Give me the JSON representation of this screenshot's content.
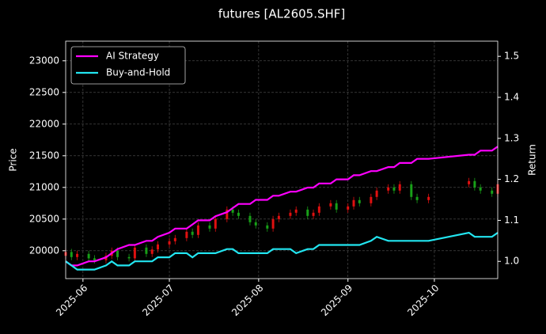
{
  "chart_data": {
    "type": "candlestick",
    "title": "futures [AL2605.SHF]",
    "ylabel": "Price",
    "y2label": "Return",
    "x": [
      "2025-05-26",
      "2025-05-28",
      "2025-05-30",
      "2025-06-03",
      "2025-06-05",
      "2025-06-09",
      "2025-06-11",
      "2025-06-13",
      "2025-06-17",
      "2025-06-19",
      "2025-06-23",
      "2025-06-25",
      "2025-06-27",
      "2025-07-01",
      "2025-07-03",
      "2025-07-07",
      "2025-07-09",
      "2025-07-11",
      "2025-07-15",
      "2025-07-17",
      "2025-07-21",
      "2025-07-23",
      "2025-07-25",
      "2025-07-29",
      "2025-07-31",
      "2025-08-04",
      "2025-08-06",
      "2025-08-08",
      "2025-08-12",
      "2025-08-14",
      "2025-08-18",
      "2025-08-20",
      "2025-08-22",
      "2025-08-26",
      "2025-08-28",
      "2025-09-01",
      "2025-09-03",
      "2025-09-05",
      "2025-09-09",
      "2025-09-11",
      "2025-09-15",
      "2025-09-17",
      "2025-09-19",
      "2025-09-23",
      "2025-09-25",
      "2025-09-29",
      "2025-10-13",
      "2025-10-15",
      "2025-10-17",
      "2025-10-21",
      "2025-10-23"
    ],
    "open": [
      19920,
      19980,
      19900,
      19950,
      19880,
      19850,
      19920,
      20000,
      19900,
      19880,
      20050,
      19950,
      20020,
      20100,
      20150,
      20200,
      20300,
      20250,
      20400,
      20350,
      20500,
      20650,
      20600,
      20550,
      20450,
      20400,
      20350,
      20500,
      20550,
      20600,
      20650,
      20550,
      20600,
      20700,
      20750,
      20650,
      20700,
      20800,
      20750,
      20850,
      20950,
      21000,
      20950,
      21050,
      20850,
      20800,
      21050,
      21100,
      21000,
      20950,
      20900
    ],
    "high": [
      20030,
      20030,
      20000,
      20000,
      19930,
      19970,
      20050,
      20050,
      19950,
      20100,
      20100,
      20070,
      20150,
      20200,
      20250,
      20350,
      20350,
      20450,
      20450,
      20550,
      20700,
      20700,
      20650,
      20600,
      20500,
      20450,
      20550,
      20600,
      20650,
      20700,
      20700,
      20650,
      20750,
      20800,
      20800,
      20750,
      20850,
      20850,
      20900,
      21000,
      21050,
      21050,
      21100,
      21100,
      20900,
      20900,
      21150,
      21150,
      21050,
      21000,
      21100
    ],
    "low": [
      19870,
      19850,
      19850,
      19830,
      19800,
      19800,
      19870,
      19850,
      19830,
      19830,
      19900,
      19900,
      19970,
      20050,
      20100,
      20150,
      20200,
      20200,
      20300,
      20300,
      20450,
      20550,
      20500,
      20400,
      20350,
      20300,
      20300,
      20450,
      20500,
      20550,
      20500,
      20500,
      20550,
      20650,
      20600,
      20600,
      20650,
      20700,
      20700,
      20800,
      20900,
      20900,
      20900,
      20800,
      20750,
      20750,
      21000,
      20950,
      20900,
      20850,
      20850
    ],
    "close": [
      19980,
      19900,
      19950,
      19880,
      19850,
      19920,
      20000,
      19900,
      19880,
      20050,
      19950,
      20020,
      20100,
      20150,
      20200,
      20300,
      20250,
      20400,
      20350,
      20500,
      20650,
      20600,
      20550,
      20450,
      20400,
      20350,
      20500,
      20550,
      20600,
      20650,
      20550,
      20600,
      20700,
      20750,
      20650,
      20700,
      20800,
      20750,
      20850,
      20950,
      21000,
      20950,
      21050,
      20850,
      20800,
      20850,
      21100,
      21000,
      20950,
      20900,
      21050
    ],
    "up_color": "#e01010",
    "down_color": "#18a018",
    "series": [
      {
        "name": "AI Strategy",
        "color": "#ff00ff",
        "axis": "y2",
        "values": [
          1.0,
          0.99,
          0.99,
          1.0,
          1.0,
          1.01,
          1.02,
          1.03,
          1.04,
          1.04,
          1.05,
          1.05,
          1.06,
          1.07,
          1.08,
          1.08,
          1.09,
          1.1,
          1.1,
          1.11,
          1.12,
          1.13,
          1.14,
          1.14,
          1.15,
          1.15,
          1.16,
          1.16,
          1.17,
          1.17,
          1.18,
          1.18,
          1.19,
          1.19,
          1.2,
          1.2,
          1.21,
          1.21,
          1.22,
          1.22,
          1.23,
          1.23,
          1.24,
          1.24,
          1.25,
          1.25,
          1.26,
          1.26,
          1.27,
          1.27,
          1.28
        ]
      },
      {
        "name": "Buy-and-Hold",
        "color": "#22e5f0",
        "axis": "y2",
        "values": [
          1.0,
          0.99,
          0.98,
          0.98,
          0.98,
          0.99,
          1.0,
          0.99,
          0.99,
          1.0,
          1.0,
          1.0,
          1.01,
          1.01,
          1.02,
          1.02,
          1.01,
          1.02,
          1.02,
          1.02,
          1.03,
          1.03,
          1.02,
          1.02,
          1.02,
          1.02,
          1.03,
          1.03,
          1.03,
          1.02,
          1.03,
          1.03,
          1.04,
          1.04,
          1.04,
          1.04,
          1.04,
          1.04,
          1.05,
          1.06,
          1.05,
          1.05,
          1.05,
          1.05,
          1.05,
          1.05,
          1.07,
          1.06,
          1.06,
          1.06,
          1.07
        ]
      }
    ],
    "xlim": [
      "2025-05-26",
      "2025-10-23"
    ],
    "xticks": [
      {
        "value": "2025-06-01",
        "label": "2025-06"
      },
      {
        "value": "2025-07-01",
        "label": "2025-07"
      },
      {
        "value": "2025-08-01",
        "label": "2025-08"
      },
      {
        "value": "2025-09-01",
        "label": "2025-09"
      },
      {
        "value": "2025-10-01",
        "label": "2025-10"
      }
    ],
    "ylim": [
      19560,
      23310
    ],
    "yticks": [
      20000,
      20500,
      21000,
      21500,
      22000,
      22500,
      23000
    ],
    "y2lim": [
      0.958,
      1.537
    ],
    "y2ticks": [
      {
        "value": 1.0,
        "label": "1.0"
      },
      {
        "value": 1.1,
        "label": "1.1"
      },
      {
        "value": 1.2,
        "label": "1.2"
      },
      {
        "value": 1.3,
        "label": "1.3"
      },
      {
        "value": 1.4,
        "label": "1.4"
      },
      {
        "value": 1.5,
        "label": "1.5"
      }
    ],
    "grid": true,
    "legend": "upper left"
  }
}
